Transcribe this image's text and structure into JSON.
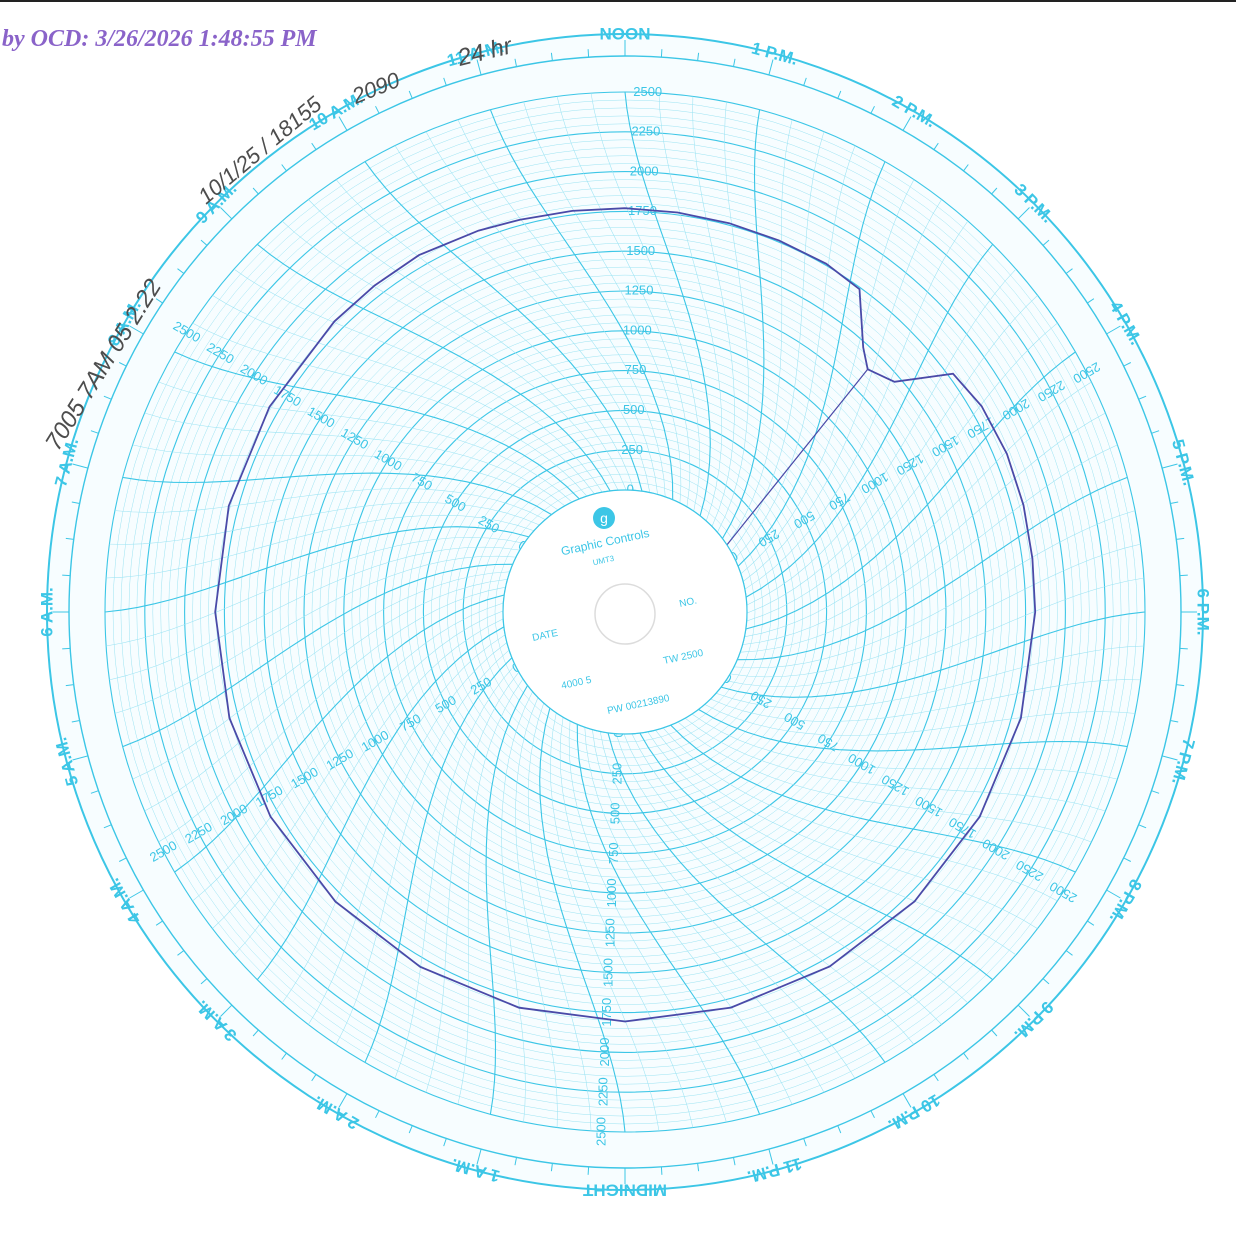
{
  "stamp": {
    "text": "by OCD: 3/26/2026 1:48:55 PM",
    "color": "#8a63c9"
  },
  "chart": {
    "hour_labels": [
      "NOON",
      "1 P.M.",
      "2 P.M.",
      "3 P.M.",
      "4 P.M.",
      "5 P.M.",
      "6 P.M.",
      "7 P.M.",
      "8 P.M.",
      "9 P.M.",
      "10 P.M.",
      "11 P.M.",
      "MIDNIGHT",
      "1 A.M.",
      "2 A.M.",
      "3 A.M.",
      "4 A.M.",
      "5 A.M.",
      "6 A.M.",
      "7 A.M.",
      "8 A.M.",
      "9 A.M.",
      "10 A.M.",
      "11 A.M."
    ],
    "scale_labels": [
      "0",
      "250",
      "500",
      "750",
      "1000",
      "1250",
      "1500",
      "1750",
      "2000",
      "2250",
      "2500"
    ],
    "scale_max": 2500,
    "center_disc": {
      "brand": "Graphic Controls",
      "model": "UMT3",
      "date_label": "DATE",
      "no_label": "NO.",
      "range_left": "4000 5",
      "range_right": "TW 2500",
      "part_number": "PW 00213890"
    },
    "handwriting": {
      "line1": "7005 7AM 05 2.22",
      "line2": "10/1/25 / 18155",
      "line3": "2090",
      "line4": "24 hr"
    },
    "colors": {
      "grid": "#3cc6e6",
      "grid_light": "#9be3f3",
      "trace": "#4a4aa8",
      "handwriting": "#4d4d4d"
    },
    "trace_samples": [
      {
        "hour": 0,
        "value": 1770
      },
      {
        "hour": 0.5,
        "value": 1765
      },
      {
        "hour": 1,
        "value": 1762
      },
      {
        "hour": 1.5,
        "value": 1760
      },
      {
        "hour": 2,
        "value": 1760
      },
      {
        "hour": 2.4,
        "value": 1740
      },
      {
        "hour": 2.8,
        "value": 1470
      },
      {
        "hour": 3,
        "value": 1390
      },
      {
        "hour": 3.3,
        "value": 1460
      },
      {
        "hour": 3.6,
        "value": 1780
      },
      {
        "hour": 4,
        "value": 1820
      },
      {
        "hour": 4.5,
        "value": 1830
      },
      {
        "hour": 5,
        "value": 1825
      },
      {
        "hour": 5.5,
        "value": 1815
      },
      {
        "hour": 6,
        "value": 1810
      },
      {
        "hour": 7,
        "value": 1808
      },
      {
        "hour": 8,
        "value": 1806
      },
      {
        "hour": 9,
        "value": 1805
      },
      {
        "hour": 10,
        "value": 1805
      },
      {
        "hour": 11,
        "value": 1806
      },
      {
        "hour": 12,
        "value": 1806
      },
      {
        "hour": 13,
        "value": 1807
      },
      {
        "hour": 14,
        "value": 1807
      },
      {
        "hour": 15,
        "value": 1806
      },
      {
        "hour": 16,
        "value": 1805
      },
      {
        "hour": 17,
        "value": 1806
      },
      {
        "hour": 18,
        "value": 1808
      },
      {
        "hour": 19,
        "value": 1810
      },
      {
        "hour": 20,
        "value": 1812
      },
      {
        "hour": 21,
        "value": 1815
      },
      {
        "hour": 21.5,
        "value": 1818
      },
      {
        "hour": 22,
        "value": 1822
      },
      {
        "hour": 22.6,
        "value": 1800
      },
      {
        "hour": 23,
        "value": 1785
      },
      {
        "hour": 23.5,
        "value": 1775
      },
      {
        "hour": 24,
        "value": 1770
      }
    ]
  }
}
